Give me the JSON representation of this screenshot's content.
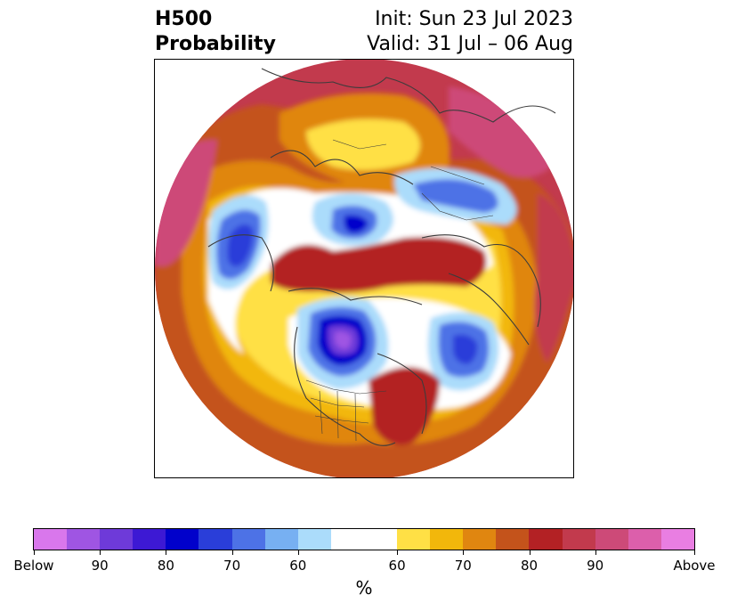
{
  "header": {
    "left_line1": "H500",
    "left_line2": "Probability",
    "right_line1": "Init: Sun 23 Jul 2023",
    "right_line2": "Valid: 31 Jul – 06 Aug"
  },
  "colorbar": {
    "colors": [
      "#d977ec",
      "#9f55e3",
      "#6e3ad9",
      "#3d19d4",
      "#0101cb",
      "#2a3ed9",
      "#4d72e6",
      "#77b0f2",
      "#abdcfb",
      "#ffffff",
      "#ffe045",
      "#f2b70b",
      "#e08610",
      "#c4531b",
      "#b32124",
      "#c23a4d",
      "#cd4a78",
      "#dc5fab",
      "#e97ee2"
    ],
    "segment_weights": [
      1,
      1,
      1,
      1,
      1,
      1,
      1,
      1,
      1,
      2,
      1,
      1,
      1,
      1,
      1,
      1,
      1,
      1,
      1
    ],
    "tick_labels": [
      "Below",
      "90",
      "80",
      "70",
      "60",
      "60",
      "70",
      "80",
      "90",
      "Above"
    ],
    "units_label": "%"
  }
}
